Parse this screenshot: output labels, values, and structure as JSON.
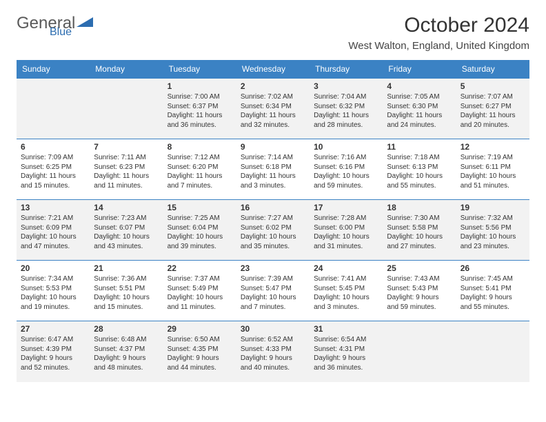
{
  "logo": {
    "text1": "General",
    "text2": "Blue"
  },
  "colors": {
    "headerBar": "#3b82c4",
    "headerText": "#ffffff",
    "border": "#3b82c4",
    "shaded": "#f2f2f2",
    "logoGray": "#5a5a5a",
    "logoBlue": "#2c6db0"
  },
  "title": "October 2024",
  "location": "West Walton, England, United Kingdom",
  "weekdays": [
    "Sunday",
    "Monday",
    "Tuesday",
    "Wednesday",
    "Thursday",
    "Friday",
    "Saturday"
  ],
  "weeks": [
    [
      null,
      null,
      {
        "n": "1",
        "sr": "7:00 AM",
        "ss": "6:37 PM",
        "dl": "11 hours and 36 minutes."
      },
      {
        "n": "2",
        "sr": "7:02 AM",
        "ss": "6:34 PM",
        "dl": "11 hours and 32 minutes."
      },
      {
        "n": "3",
        "sr": "7:04 AM",
        "ss": "6:32 PM",
        "dl": "11 hours and 28 minutes."
      },
      {
        "n": "4",
        "sr": "7:05 AM",
        "ss": "6:30 PM",
        "dl": "11 hours and 24 minutes."
      },
      {
        "n": "5",
        "sr": "7:07 AM",
        "ss": "6:27 PM",
        "dl": "11 hours and 20 minutes."
      }
    ],
    [
      {
        "n": "6",
        "sr": "7:09 AM",
        "ss": "6:25 PM",
        "dl": "11 hours and 15 minutes."
      },
      {
        "n": "7",
        "sr": "7:11 AM",
        "ss": "6:23 PM",
        "dl": "11 hours and 11 minutes."
      },
      {
        "n": "8",
        "sr": "7:12 AM",
        "ss": "6:20 PM",
        "dl": "11 hours and 7 minutes."
      },
      {
        "n": "9",
        "sr": "7:14 AM",
        "ss": "6:18 PM",
        "dl": "11 hours and 3 minutes."
      },
      {
        "n": "10",
        "sr": "7:16 AM",
        "ss": "6:16 PM",
        "dl": "10 hours and 59 minutes."
      },
      {
        "n": "11",
        "sr": "7:18 AM",
        "ss": "6:13 PM",
        "dl": "10 hours and 55 minutes."
      },
      {
        "n": "12",
        "sr": "7:19 AM",
        "ss": "6:11 PM",
        "dl": "10 hours and 51 minutes."
      }
    ],
    [
      {
        "n": "13",
        "sr": "7:21 AM",
        "ss": "6:09 PM",
        "dl": "10 hours and 47 minutes."
      },
      {
        "n": "14",
        "sr": "7:23 AM",
        "ss": "6:07 PM",
        "dl": "10 hours and 43 minutes."
      },
      {
        "n": "15",
        "sr": "7:25 AM",
        "ss": "6:04 PM",
        "dl": "10 hours and 39 minutes."
      },
      {
        "n": "16",
        "sr": "7:27 AM",
        "ss": "6:02 PM",
        "dl": "10 hours and 35 minutes."
      },
      {
        "n": "17",
        "sr": "7:28 AM",
        "ss": "6:00 PM",
        "dl": "10 hours and 31 minutes."
      },
      {
        "n": "18",
        "sr": "7:30 AM",
        "ss": "5:58 PM",
        "dl": "10 hours and 27 minutes."
      },
      {
        "n": "19",
        "sr": "7:32 AM",
        "ss": "5:56 PM",
        "dl": "10 hours and 23 minutes."
      }
    ],
    [
      {
        "n": "20",
        "sr": "7:34 AM",
        "ss": "5:53 PM",
        "dl": "10 hours and 19 minutes."
      },
      {
        "n": "21",
        "sr": "7:36 AM",
        "ss": "5:51 PM",
        "dl": "10 hours and 15 minutes."
      },
      {
        "n": "22",
        "sr": "7:37 AM",
        "ss": "5:49 PM",
        "dl": "10 hours and 11 minutes."
      },
      {
        "n": "23",
        "sr": "7:39 AM",
        "ss": "5:47 PM",
        "dl": "10 hours and 7 minutes."
      },
      {
        "n": "24",
        "sr": "7:41 AM",
        "ss": "5:45 PM",
        "dl": "10 hours and 3 minutes."
      },
      {
        "n": "25",
        "sr": "7:43 AM",
        "ss": "5:43 PM",
        "dl": "9 hours and 59 minutes."
      },
      {
        "n": "26",
        "sr": "7:45 AM",
        "ss": "5:41 PM",
        "dl": "9 hours and 55 minutes."
      }
    ],
    [
      {
        "n": "27",
        "sr": "6:47 AM",
        "ss": "4:39 PM",
        "dl": "9 hours and 52 minutes."
      },
      {
        "n": "28",
        "sr": "6:48 AM",
        "ss": "4:37 PM",
        "dl": "9 hours and 48 minutes."
      },
      {
        "n": "29",
        "sr": "6:50 AM",
        "ss": "4:35 PM",
        "dl": "9 hours and 44 minutes."
      },
      {
        "n": "30",
        "sr": "6:52 AM",
        "ss": "4:33 PM",
        "dl": "9 hours and 40 minutes."
      },
      {
        "n": "31",
        "sr": "6:54 AM",
        "ss": "4:31 PM",
        "dl": "9 hours and 36 minutes."
      },
      null,
      null
    ]
  ],
  "labels": {
    "sunrise": "Sunrise:",
    "sunset": "Sunset:",
    "daylight": "Daylight:"
  }
}
